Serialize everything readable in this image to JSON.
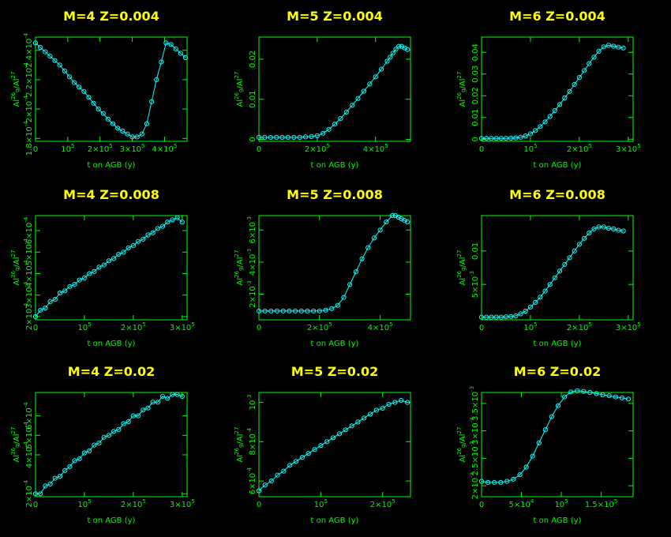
{
  "colors": {
    "background": "#000000",
    "axis": "#00ff00",
    "title": "#ffff00",
    "curve": "#00ffff"
  },
  "chart_data": [
    {
      "type": "line",
      "title": "M=4   Z=0.004",
      "xlabel": "t on AGB (y)",
      "ylabel": "Al26g/Al27",
      "xlim": [
        0,
        470000
      ],
      "ylim": [
        0.000178,
        0.000249
      ],
      "xticks": [
        {
          "v": 0,
          "label": "0"
        },
        {
          "v": 100000,
          "label": "10^5"
        },
        {
          "v": 200000,
          "label": "2×10^5"
        },
        {
          "v": 300000,
          "label": "3×10^5"
        },
        {
          "v": 400000,
          "label": "4×10^5"
        }
      ],
      "yticks": [
        {
          "v": 0.00018,
          "label": "1.8×10^-4"
        },
        {
          "v": 0.0002,
          "label": "2×10^-4"
        },
        {
          "v": 0.00022,
          "label": "2.2×10^-4"
        },
        {
          "v": 0.00024,
          "label": "2.4×10^-4"
        }
      ],
      "series": [
        {
          "x": [
            0,
            15000,
            30000,
            45000,
            60000,
            75000,
            90000,
            105000,
            120000,
            135000,
            150000,
            165000,
            180000,
            195000,
            210000,
            225000,
            240000,
            255000,
            270000,
            285000,
            300000,
            315000,
            330000,
            345000,
            360000,
            375000,
            390000,
            405000,
            420000,
            435000,
            450000,
            465000
          ],
          "y": [
            0.000245,
            0.000242,
            0.000239,
            0.000236,
            0.000233,
            0.00023,
            0.000226,
            0.000222,
            0.000218,
            0.000215,
            0.000212,
            0.000208,
            0.000204,
            0.0002,
            0.000197,
            0.000193,
            0.00019,
            0.000187,
            0.000185,
            0.000183,
            0.000181,
            0.000181,
            0.000183,
            0.00019,
            0.000205,
            0.00022,
            0.000232,
            0.000245,
            0.000244,
            0.000241,
            0.000238,
            0.000235
          ]
        }
      ]
    },
    {
      "type": "line",
      "title": "M=5   Z=0.004",
      "xlabel": "t on AGB (y)",
      "ylabel": "Al26g/Al27",
      "xlim": [
        0,
        520000
      ],
      "ylim": [
        -0.0005,
        0.0255
      ],
      "xticks": [
        {
          "v": 0,
          "label": "0"
        },
        {
          "v": 200000,
          "label": "2×10^5"
        },
        {
          "v": 400000,
          "label": "4×10^5"
        }
      ],
      "yticks": [
        {
          "v": 0,
          "label": "0"
        },
        {
          "v": 0.01,
          "label": "0.01"
        },
        {
          "v": 0.02,
          "label": "0.02"
        }
      ],
      "series": [
        {
          "x": [
            0,
            20000,
            40000,
            60000,
            80000,
            100000,
            120000,
            140000,
            160000,
            180000,
            200000,
            220000,
            240000,
            260000,
            280000,
            300000,
            320000,
            340000,
            360000,
            380000,
            400000,
            420000,
            440000,
            450000,
            460000,
            470000,
            480000,
            490000,
            500000,
            510000
          ],
          "y": [
            0.0005,
            0.0005,
            0.0005,
            0.0005,
            0.0005,
            0.0005,
            0.0005,
            0.0005,
            0.0006,
            0.0007,
            0.0009,
            0.0015,
            0.0025,
            0.0038,
            0.0052,
            0.0068,
            0.0085,
            0.0102,
            0.012,
            0.0138,
            0.0156,
            0.0175,
            0.0195,
            0.0205,
            0.0215,
            0.0225,
            0.0232,
            0.0232,
            0.0228,
            0.0224
          ]
        }
      ]
    },
    {
      "type": "line",
      "title": "M=6   Z=0.004",
      "xlabel": "t on AGB (y)",
      "ylabel": "Al26g/Al27",
      "xlim": [
        0,
        310000
      ],
      "ylim": [
        -0.001,
        0.047
      ],
      "xticks": [
        {
          "v": 0,
          "label": "0"
        },
        {
          "v": 100000,
          "label": "10^5"
        },
        {
          "v": 200000,
          "label": "2×10^5"
        },
        {
          "v": 300000,
          "label": "3×10^5"
        }
      ],
      "yticks": [
        {
          "v": 0,
          "label": "0"
        },
        {
          "v": 0.01,
          "label": "0.01"
        },
        {
          "v": 0.02,
          "label": "0.02"
        },
        {
          "v": 0.03,
          "label": "0.03"
        },
        {
          "v": 0.04,
          "label": "0.04"
        }
      ],
      "series": [
        {
          "x": [
            0,
            10000,
            20000,
            30000,
            40000,
            50000,
            60000,
            70000,
            80000,
            90000,
            100000,
            110000,
            120000,
            130000,
            140000,
            150000,
            160000,
            170000,
            180000,
            190000,
            200000,
            210000,
            220000,
            230000,
            240000,
            250000,
            260000,
            270000,
            280000,
            290000
          ],
          "y": [
            0.0004,
            0.0004,
            0.0004,
            0.0004,
            0.0004,
            0.0004,
            0.0005,
            0.0006,
            0.0009,
            0.0015,
            0.0025,
            0.004,
            0.0058,
            0.008,
            0.0105,
            0.0132,
            0.016,
            0.019,
            0.022,
            0.0252,
            0.0284,
            0.0316,
            0.0348,
            0.0378,
            0.0405,
            0.0425,
            0.0432,
            0.0428,
            0.0424,
            0.042
          ]
        }
      ]
    },
    {
      "type": "line",
      "title": "M=4   Z=0.008",
      "xlabel": "t on AGB (y)",
      "ylabel": "Al26g/Al27",
      "xlim": [
        0,
        310000
      ],
      "ylim": [
        0.000185,
        0.00067
      ],
      "xticks": [
        {
          "v": 0,
          "label": "0"
        },
        {
          "v": 100000,
          "label": "10^5"
        },
        {
          "v": 200000,
          "label": "2×10^5"
        },
        {
          "v": 300000,
          "label": "3×10^5"
        }
      ],
      "yticks": [
        {
          "v": 0.0002,
          "label": "2×10^-4"
        },
        {
          "v": 0.0003,
          "label": "3×10^-4"
        },
        {
          "v": 0.0004,
          "label": "4×10^-4"
        },
        {
          "v": 0.0005,
          "label": "5×10^-4"
        },
        {
          "v": 0.0006,
          "label": "6×10^-4"
        }
      ],
      "series": [
        {
          "x": [
            0,
            10000,
            20000,
            30000,
            40000,
            50000,
            60000,
            70000,
            80000,
            90000,
            100000,
            110000,
            120000,
            130000,
            140000,
            150000,
            160000,
            170000,
            180000,
            190000,
            200000,
            210000,
            220000,
            230000,
            240000,
            250000,
            260000,
            270000,
            280000,
            290000,
            300000
          ],
          "y": [
            0.0002,
            0.00023,
            0.00024,
            0.00027,
            0.00028,
            0.00031,
            0.00032,
            0.00034,
            0.00035,
            0.00037,
            0.00038,
            0.0004,
            0.00041,
            0.00043,
            0.00044,
            0.00046,
            0.00047,
            0.00049,
            0.0005,
            0.00052,
            0.00053,
            0.00055,
            0.00056,
            0.00058,
            0.00059,
            0.00061,
            0.00062,
            0.00064,
            0.00065,
            0.00066,
            0.00064
          ]
        }
      ]
    },
    {
      "type": "line",
      "title": "M=5   Z=0.008",
      "xlabel": "t on AGB (y)",
      "ylabel": "Al26g/Al27",
      "xlim": [
        0,
        500000
      ],
      "ylim": [
        0.0004,
        0.0069
      ],
      "xticks": [
        {
          "v": 0,
          "label": "0"
        },
        {
          "v": 200000,
          "label": "2×10^5"
        },
        {
          "v": 400000,
          "label": "4×10^5"
        }
      ],
      "yticks": [
        {
          "v": 0.002,
          "label": "2×10^-3"
        },
        {
          "v": 0.004,
          "label": "4×10^-3"
        },
        {
          "v": 0.006,
          "label": "6×10^-3"
        }
      ],
      "series": [
        {
          "x": [
            0,
            20000,
            40000,
            60000,
            80000,
            100000,
            120000,
            140000,
            160000,
            180000,
            200000,
            220000,
            240000,
            260000,
            280000,
            300000,
            320000,
            340000,
            360000,
            380000,
            400000,
            420000,
            440000,
            450000,
            460000,
            470000,
            480000,
            490000
          ],
          "y": [
            0.00095,
            0.00095,
            0.00095,
            0.00095,
            0.00095,
            0.00095,
            0.00095,
            0.00095,
            0.00095,
            0.00095,
            0.00095,
            0.001,
            0.0011,
            0.0013,
            0.0018,
            0.0026,
            0.0034,
            0.0042,
            0.0049,
            0.0055,
            0.006,
            0.0065,
            0.0069,
            0.0069,
            0.0068,
            0.0067,
            0.0066,
            0.0065
          ]
        }
      ]
    },
    {
      "type": "line",
      "title": "M=6   Z=0.008",
      "xlabel": "t on AGB (y)",
      "ylabel": "Al26g/Al27",
      "xlim": [
        0,
        310000
      ],
      "ylim": [
        -0.0003,
        0.0153
      ],
      "xticks": [
        {
          "v": 0,
          "label": "0"
        },
        {
          "v": 100000,
          "label": "10^5"
        },
        {
          "v": 200000,
          "label": "2×10^5"
        },
        {
          "v": 300000,
          "label": "3×10^5"
        }
      ],
      "yticks": [
        {
          "v": 0.005,
          "label": "5×10^-3"
        },
        {
          "v": 0.01,
          "label": "0.01"
        }
      ],
      "series": [
        {
          "x": [
            0,
            10000,
            20000,
            30000,
            40000,
            50000,
            60000,
            70000,
            80000,
            90000,
            100000,
            110000,
            120000,
            130000,
            140000,
            150000,
            160000,
            170000,
            180000,
            190000,
            200000,
            210000,
            220000,
            230000,
            240000,
            250000,
            260000,
            270000,
            280000,
            290000
          ],
          "y": [
            0.0001,
            0.0001,
            0.0001,
            0.0001,
            0.0001,
            0.00015,
            0.0002,
            0.0003,
            0.0006,
            0.001,
            0.0016,
            0.0023,
            0.0031,
            0.004,
            0.005,
            0.006,
            0.007,
            0.008,
            0.009,
            0.01,
            0.011,
            0.0119,
            0.0127,
            0.0133,
            0.0136,
            0.0136,
            0.0134,
            0.0133,
            0.0131,
            0.013
          ]
        }
      ]
    },
    {
      "type": "line",
      "title": "M=4   Z=0.02",
      "xlabel": "t on AGB (y)",
      "ylabel": "Al26g/Al27",
      "xlim": [
        0,
        310000
      ],
      "ylim": [
        0.000185,
        0.00072
      ],
      "xticks": [
        {
          "v": 0,
          "label": "0"
        },
        {
          "v": 100000,
          "label": "10^5"
        },
        {
          "v": 200000,
          "label": "2×10^5"
        },
        {
          "v": 300000,
          "label": "3×10^5"
        }
      ],
      "yticks": [
        {
          "v": 0.0002,
          "label": "2×10^-4"
        },
        {
          "v": 0.0004,
          "label": "4×10^-4"
        },
        {
          "v": 0.0005,
          "label": "5×10^-4"
        },
        {
          "v": 0.0006,
          "label": "6×10^-4"
        }
      ],
      "series": [
        {
          "x": [
            0,
            10000,
            20000,
            30000,
            40000,
            50000,
            60000,
            70000,
            80000,
            90000,
            100000,
            110000,
            120000,
            130000,
            140000,
            150000,
            160000,
            170000,
            180000,
            190000,
            200000,
            210000,
            220000,
            230000,
            240000,
            250000,
            260000,
            270000,
            280000,
            290000,
            300000
          ],
          "y": [
            0.0002,
            0.0002,
            0.00024,
            0.00025,
            0.00028,
            0.00029,
            0.00032,
            0.00034,
            0.00037,
            0.00038,
            0.00041,
            0.00042,
            0.00045,
            0.00046,
            0.00049,
            0.0005,
            0.00052,
            0.00053,
            0.00056,
            0.00057,
            0.0006,
            0.0006,
            0.00063,
            0.00064,
            0.00067,
            0.00067,
            0.0007,
            0.00069,
            0.00071,
            0.00071,
            0.0007
          ]
        }
      ]
    },
    {
      "type": "line",
      "title": "M=5   Z=0.02",
      "xlabel": "t on AGB (y)",
      "ylabel": "Al26g/Al27",
      "xlim": [
        0,
        245000
      ],
      "ylim": [
        0.00052,
        0.00105
      ],
      "xticks": [
        {
          "v": 0,
          "label": "0"
        },
        {
          "v": 100000,
          "label": "10^5"
        },
        {
          "v": 200000,
          "label": "2×10^5"
        }
      ],
      "yticks": [
        {
          "v": 0.0006,
          "label": "6×10^-4"
        },
        {
          "v": 0.0008,
          "label": "8×10^-4"
        },
        {
          "v": 0.001,
          "label": "10^-3"
        }
      ],
      "series": [
        {
          "x": [
            0,
            10000,
            20000,
            30000,
            40000,
            50000,
            60000,
            70000,
            80000,
            90000,
            100000,
            110000,
            120000,
            130000,
            140000,
            150000,
            160000,
            170000,
            180000,
            190000,
            200000,
            210000,
            220000,
            230000,
            240000
          ],
          "y": [
            0.00055,
            0.00058,
            0.0006,
            0.00063,
            0.00065,
            0.00068,
            0.0007,
            0.00072,
            0.00074,
            0.00076,
            0.00078,
            0.0008,
            0.00082,
            0.00084,
            0.00086,
            0.00088,
            0.0009,
            0.00092,
            0.00094,
            0.00096,
            0.00097,
            0.00099,
            0.001,
            0.00101,
            0.001
          ]
        }
      ]
    },
    {
      "type": "line",
      "title": "M=6   Z=0.02",
      "xlabel": "t on AGB (y)",
      "ylabel": "Al26g/Al27",
      "xlim": [
        0,
        190000
      ],
      "ylim": [
        0.0018,
        0.0037
      ],
      "xticks": [
        {
          "v": 0,
          "label": "0"
        },
        {
          "v": 50000,
          "label": "5×10^4"
        },
        {
          "v": 100000,
          "label": "10^5"
        },
        {
          "v": 150000,
          "label": "1.5×10^5"
        }
      ],
      "yticks": [
        {
          "v": 0.002,
          "label": "2×10^-3"
        },
        {
          "v": 0.0025,
          "label": "2.5×10^-3"
        },
        {
          "v": 0.003,
          "label": "3×10^-3"
        },
        {
          "v": 0.0035,
          "label": "3.5×10^-3"
        }
      ],
      "series": [
        {
          "x": [
            0,
            8000,
            16000,
            24000,
            32000,
            40000,
            48000,
            56000,
            64000,
            72000,
            80000,
            88000,
            96000,
            104000,
            112000,
            120000,
            128000,
            136000,
            144000,
            152000,
            160000,
            168000,
            176000,
            184000
          ],
          "y": [
            0.00208,
            0.00206,
            0.00206,
            0.00206,
            0.00208,
            0.00212,
            0.0022,
            0.00234,
            0.00254,
            0.00278,
            0.00302,
            0.00326,
            0.00346,
            0.00362,
            0.00371,
            0.00373,
            0.00372,
            0.0037,
            0.00368,
            0.00366,
            0.00364,
            0.00362,
            0.0036,
            0.00358
          ]
        }
      ]
    }
  ]
}
